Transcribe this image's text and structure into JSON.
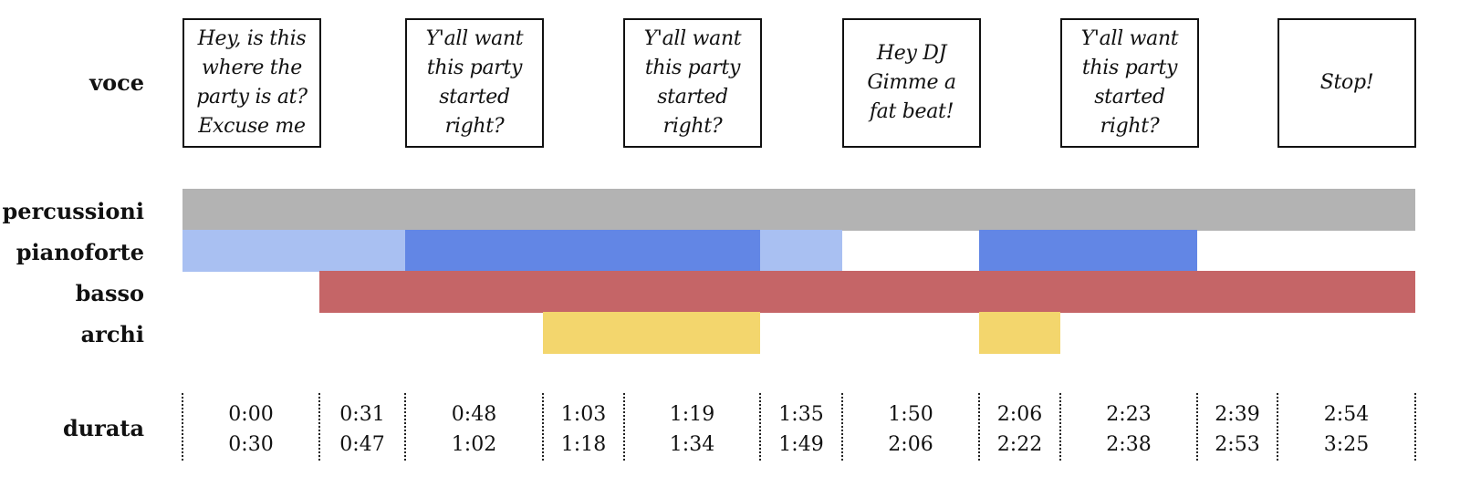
{
  "labels": {
    "voce": "voce",
    "percussioni": "percussioni",
    "pianoforte": "pianoforte",
    "basso": "basso",
    "archi": "archi",
    "durata": "durata"
  },
  "lyrics": [
    "Hey, is this\nwhere the\nparty is at?\nExcuse me",
    "Y'all want\nthis party\nstarted\nright?",
    "Y'all want\nthis party\nstarted\nright?",
    "Hey DJ\nGimme a\nfat beat!",
    "Y'all want\nthis party\nstarted\nright?",
    "Stop!"
  ],
  "segments": [
    {
      "start": "0:00",
      "end": "0:30"
    },
    {
      "start": "0:31",
      "end": "0:47"
    },
    {
      "start": "0:48",
      "end": "1:02"
    },
    {
      "start": "1:03",
      "end": "1:18"
    },
    {
      "start": "1:19",
      "end": "1:34"
    },
    {
      "start": "1:35",
      "end": "1:49"
    },
    {
      "start": "1:50",
      "end": "2:06"
    },
    {
      "start": "2:06",
      "end": "2:22"
    },
    {
      "start": "2:23",
      "end": "2:38"
    },
    {
      "start": "2:39",
      "end": "2:53"
    },
    {
      "start": "2:54",
      "end": "3:25"
    }
  ],
  "instruments": {
    "percussioni": [
      {
        "from_segment": 0,
        "to_segment": 10,
        "intensity": "full"
      }
    ],
    "pianoforte": [
      {
        "from_segment": 0,
        "to_segment": 1,
        "intensity": "light"
      },
      {
        "from_segment": 2,
        "to_segment": 4,
        "intensity": "strong"
      },
      {
        "from_segment": 5,
        "to_segment": 5,
        "intensity": "light"
      },
      {
        "from_segment": 7,
        "to_segment": 8,
        "intensity": "strong"
      }
    ],
    "basso": [
      {
        "from_segment": 1,
        "to_segment": 10,
        "intensity": "full"
      }
    ],
    "archi": [
      {
        "from_segment": 3,
        "to_segment": 4,
        "intensity": "full"
      },
      {
        "from_segment": 7,
        "to_segment": 7,
        "intensity": "full"
      }
    ]
  },
  "colors": {
    "percussioni": "#b3b3b3",
    "pianoforte_light": "#a9c0f2",
    "pianoforte_strong": "#6286e5",
    "basso": "#c56567",
    "archi": "#f3d66d",
    "line": "#111111"
  }
}
